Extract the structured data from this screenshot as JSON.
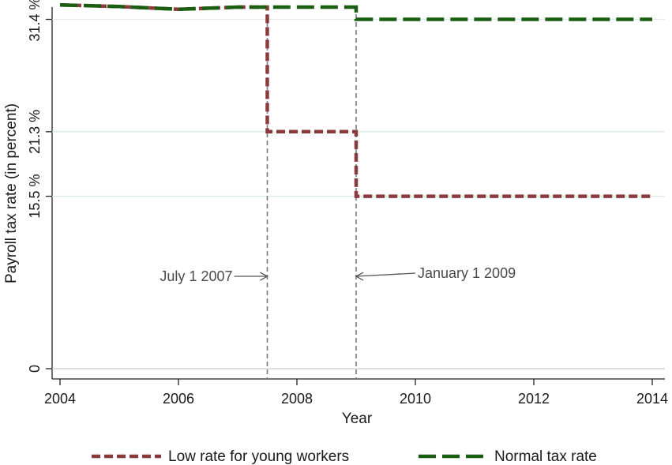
{
  "chart_data": {
    "type": "line",
    "title": "",
    "xlabel": "Year",
    "ylabel": "Payroll tax rate (in percent)",
    "xlim": [
      2004,
      2014
    ],
    "ylim": [
      0,
      32.5
    ],
    "x_ticks": [
      {
        "value": 2004,
        "label": "2004"
      },
      {
        "value": 2006,
        "label": "2006"
      },
      {
        "value": 2008,
        "label": "2008"
      },
      {
        "value": 2010,
        "label": "2010"
      },
      {
        "value": 2012,
        "label": "2012"
      },
      {
        "value": 2014,
        "label": "2014"
      }
    ],
    "y_ticks": [
      {
        "value": 0,
        "label": "0"
      },
      {
        "value": 15.5,
        "label": "15.5 %"
      },
      {
        "value": 21.3,
        "label": "21.3 %"
      },
      {
        "value": 31.4,
        "label": "31.4 %"
      }
    ],
    "grid": {
      "horizontal": true,
      "vertical": false
    },
    "legend": {
      "position": "bottom"
    },
    "series": [
      {
        "name": "Low rate for young workers",
        "color": "#8b3a3e",
        "style": "short-dash",
        "points": [
          [
            2004,
            32.7
          ],
          [
            2005,
            32.55
          ],
          [
            2006,
            32.3
          ],
          [
            2007,
            32.5
          ],
          [
            2007.5,
            32.5
          ],
          [
            2007.5,
            21.3
          ],
          [
            2009,
            21.3
          ],
          [
            2009,
            15.5
          ],
          [
            2014,
            15.5
          ]
        ]
      },
      {
        "name": "Normal tax rate",
        "color": "#1a5e12",
        "style": "long-dash",
        "points": [
          [
            2004,
            32.7
          ],
          [
            2005,
            32.55
          ],
          [
            2006,
            32.3
          ],
          [
            2007,
            32.5
          ],
          [
            2009,
            32.5
          ],
          [
            2009,
            31.4
          ],
          [
            2014,
            31.4
          ]
        ]
      }
    ],
    "annotations": [
      {
        "text": "July 1 2007",
        "x": 2007.5,
        "y": 8.3,
        "side": "left"
      },
      {
        "text": "January 1 2009",
        "x": 2009,
        "y": 8.3,
        "side": "right"
      }
    ],
    "reference_lines": [
      {
        "axis": "x",
        "value": 2007.5
      },
      {
        "axis": "x",
        "value": 2009
      }
    ]
  }
}
